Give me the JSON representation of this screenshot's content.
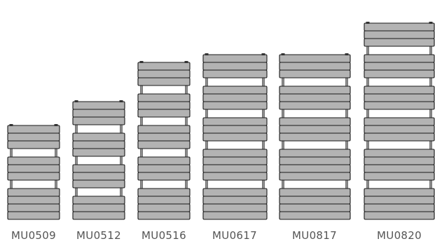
{
  "colors": {
    "bar_fill": "#b3b3b3",
    "bar_stroke": "#1a1a1a",
    "rail_stroke": "#1a1a1a",
    "label_text": "#555555",
    "background": "#ffffff"
  },
  "radiators": [
    {
      "label": "MU0509",
      "groups": [
        3,
        3,
        4
      ]
    },
    {
      "label": "MU0512",
      "groups": [
        3,
        3,
        3,
        3
      ]
    },
    {
      "label": "MU0516",
      "groups": [
        3,
        3,
        3,
        3,
        4
      ]
    },
    {
      "label": "MU0617",
      "groups": [
        3,
        3,
        3,
        4,
        4
      ]
    },
    {
      "label": "MU0817",
      "groups": [
        3,
        3,
        3,
        4,
        4
      ]
    },
    {
      "label": "MU0820",
      "groups": [
        3,
        3,
        3,
        3,
        4,
        4
      ]
    }
  ]
}
